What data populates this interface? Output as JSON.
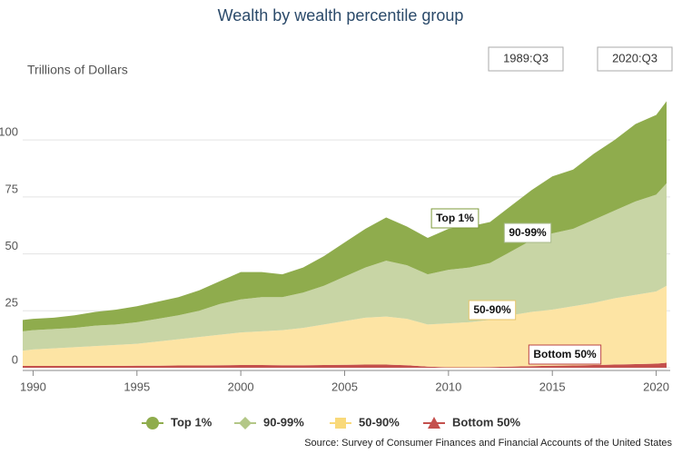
{
  "chart_data": {
    "type": "stacked-area",
    "title": "Wealth by wealth percentile group",
    "y_label": "Trillions of Dollars",
    "range_labels": [
      "1989:Q3",
      "2020:Q3"
    ],
    "source": "Source: Survey of Consumer Finances and Financial Accounts of the United States",
    "x": [
      1989.5,
      1990,
      1991,
      1992,
      1993,
      1994,
      1995,
      1996,
      1997,
      1998,
      1999,
      2000,
      2001,
      2002,
      2003,
      2004,
      2005,
      2006,
      2007,
      2008,
      2009,
      2010,
      2011,
      2012,
      2013,
      2014,
      2015,
      2016,
      2017,
      2018,
      2019,
      2020,
      2020.5
    ],
    "xlim": [
      1989.5,
      2020.5
    ],
    "xticks": [
      1990,
      1995,
      2000,
      2005,
      2010,
      2015,
      2020
    ],
    "ylim": [
      0,
      120
    ],
    "yticks": [
      0,
      25,
      50,
      75,
      100
    ],
    "grid": true,
    "series": [
      {
        "name": "Bottom 50%",
        "color": "#c4504d",
        "marker": "triangle",
        "values": [
          0.8,
          0.8,
          0.8,
          0.8,
          0.8,
          0.8,
          0.9,
          0.9,
          1.0,
          1.0,
          1.1,
          1.2,
          1.2,
          1.1,
          1.1,
          1.2,
          1.3,
          1.4,
          1.4,
          1.1,
          0.5,
          0.2,
          0.2,
          0.3,
          0.5,
          0.7,
          0.9,
          1.0,
          1.2,
          1.4,
          1.6,
          1.8,
          2.2
        ]
      },
      {
        "name": "50-90%",
        "color": "#fde4a4",
        "marker": "square",
        "values": [
          6.7,
          7.2,
          7.7,
          8.2,
          8.7,
          9.2,
          9.6,
          10.6,
          11.5,
          12.5,
          13.4,
          14.3,
          14.8,
          15.4,
          16.4,
          17.8,
          19.2,
          20.6,
          21.1,
          20.4,
          18.5,
          19.3,
          19.8,
          20.7,
          22.5,
          23.8,
          24.6,
          26.0,
          27.3,
          29.1,
          30.4,
          31.7,
          33.8
        ]
      },
      {
        "name": "90-99%",
        "color": "#c8d5a5",
        "marker": "diamond",
        "values": [
          8.5,
          8.5,
          8.5,
          8.5,
          9,
          9,
          9.5,
          10,
          10.5,
          11.5,
          13.5,
          14.5,
          15,
          14.5,
          15.5,
          17,
          19.5,
          22,
          24.5,
          23.5,
          22,
          23.5,
          24,
          25,
          28,
          31.5,
          33.5,
          34,
          36.5,
          38.5,
          41,
          42.5,
          45
        ]
      },
      {
        "name": "Top 1%",
        "color": "#8fac4d",
        "marker": "circle",
        "values": [
          5,
          5,
          5,
          5.5,
          6,
          6.5,
          7,
          7.5,
          8,
          9,
          10,
          12,
          11,
          10,
          11,
          13,
          15,
          17,
          19,
          17,
          16,
          18,
          18,
          18,
          20,
          22,
          25,
          26,
          29,
          31,
          34,
          35,
          36
        ]
      }
    ]
  }
}
